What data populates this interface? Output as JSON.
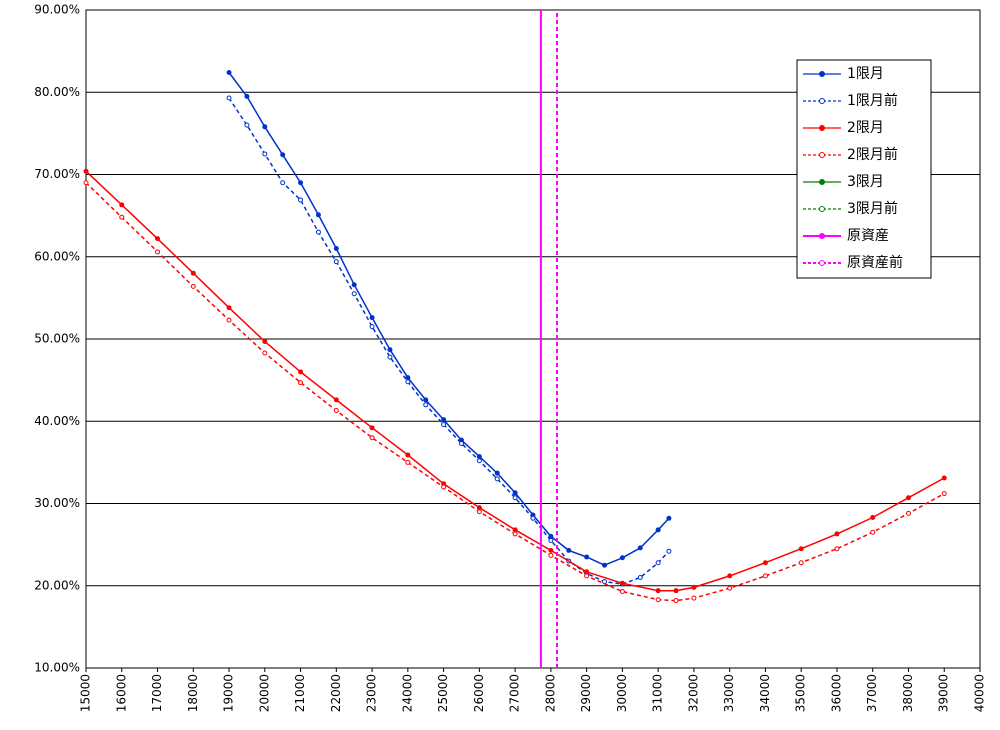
{
  "chart_data": {
    "type": "line",
    "xlim": [
      15000,
      40000
    ],
    "xticks": [
      15000,
      16000,
      17000,
      18000,
      19000,
      20000,
      21000,
      22000,
      23000,
      24000,
      25000,
      26000,
      27000,
      28000,
      29000,
      30000,
      31000,
      32000,
      33000,
      34000,
      35000,
      36000,
      37000,
      38000,
      39000,
      40000
    ],
    "ylim": [
      10,
      90
    ],
    "yticks": [
      {
        "value": 10,
        "label": "10.00%"
      },
      {
        "value": 20,
        "label": "20.00%"
      },
      {
        "value": 30,
        "label": "30.00%"
      },
      {
        "value": 40,
        "label": "40.00%"
      },
      {
        "value": 50,
        "label": "50.00%"
      },
      {
        "value": 60,
        "label": "60.00%"
      },
      {
        "value": 70,
        "label": "70.00%"
      },
      {
        "value": 80,
        "label": "80.00%"
      },
      {
        "value": 90,
        "label": "90.00%"
      }
    ],
    "grid": true,
    "legend": "upper right",
    "series": [
      {
        "name": "1限月",
        "color": "#0033cc",
        "style": "solid",
        "x": [
          19000,
          19500,
          20000,
          20500,
          21000,
          21500,
          22000,
          22500,
          23000,
          23500,
          24000,
          24500,
          25000,
          25500,
          26000,
          26500,
          27000,
          27500,
          28000,
          28500,
          29000,
          29500,
          30000,
          30500,
          31000,
          31300
        ],
        "values": [
          82.4,
          79.5,
          75.8,
          72.4,
          69.0,
          65.1,
          61.0,
          56.6,
          52.6,
          48.7,
          45.3,
          42.6,
          40.2,
          37.7,
          35.7,
          33.7,
          31.3,
          28.6,
          26.0,
          24.3,
          23.5,
          22.5,
          23.4,
          24.6,
          26.8,
          28.2
        ]
      },
      {
        "name": "1限月前",
        "color": "#0033cc",
        "style": "dashed",
        "x": [
          19000,
          19500,
          20000,
          20500,
          21000,
          21500,
          22000,
          22500,
          23000,
          23500,
          24000,
          24500,
          25000,
          25500,
          26000,
          26500,
          27000,
          27500,
          28000,
          28500,
          29000,
          29500,
          30000,
          30500,
          31000,
          31300
        ],
        "values": [
          79.3,
          76.0,
          72.5,
          69.0,
          66.9,
          63.0,
          59.4,
          55.5,
          51.5,
          47.8,
          44.8,
          42.0,
          39.6,
          37.3,
          35.2,
          33.0,
          30.7,
          28.2,
          25.5,
          23.0,
          21.5,
          20.5,
          20.2,
          21.0,
          22.8,
          24.2
        ]
      },
      {
        "name": "2限月",
        "color": "#ff0000",
        "style": "solid",
        "x": [
          15000,
          16000,
          17000,
          18000,
          19000,
          20000,
          21000,
          22000,
          23000,
          24000,
          25000,
          26000,
          27000,
          28000,
          29000,
          30000,
          31000,
          31500,
          32000,
          33000,
          34000,
          35000,
          36000,
          37000,
          38000,
          39000
        ],
        "values": [
          70.4,
          66.3,
          62.2,
          58.0,
          53.8,
          49.7,
          46.0,
          42.6,
          39.2,
          35.9,
          32.4,
          29.5,
          26.8,
          24.3,
          21.7,
          20.3,
          19.4,
          19.4,
          19.8,
          21.2,
          22.8,
          24.5,
          26.3,
          28.3,
          30.7,
          33.1
        ]
      },
      {
        "name": "2限月前",
        "color": "#ff0000",
        "style": "dashed",
        "x": [
          15000,
          16000,
          17000,
          18000,
          19000,
          20000,
          21000,
          22000,
          23000,
          24000,
          25000,
          26000,
          27000,
          28000,
          29000,
          30000,
          31000,
          31500,
          32000,
          33000,
          34000,
          35000,
          36000,
          37000,
          38000,
          39000
        ],
        "values": [
          69.0,
          64.8,
          60.6,
          56.4,
          52.3,
          48.3,
          44.7,
          41.3,
          38.0,
          35.0,
          32.0,
          29.0,
          26.3,
          23.7,
          21.2,
          19.3,
          18.3,
          18.2,
          18.5,
          19.7,
          21.2,
          22.8,
          24.5,
          26.5,
          28.8,
          31.2
        ]
      },
      {
        "name": "3限月",
        "color": "#008000",
        "style": "solid",
        "x": [],
        "values": []
      },
      {
        "name": "3限月前",
        "color": "#008000",
        "style": "dashed",
        "x": [],
        "values": []
      },
      {
        "name": "原資産",
        "color": "#ff00ff",
        "style": "solid",
        "x": [
          27720,
          27720
        ],
        "values": [
          10,
          90
        ]
      },
      {
        "name": "原資産前",
        "color": "#ff00ff",
        "style": "dashed",
        "x": [
          28170,
          28170
        ],
        "values": [
          10,
          90
        ]
      }
    ]
  }
}
